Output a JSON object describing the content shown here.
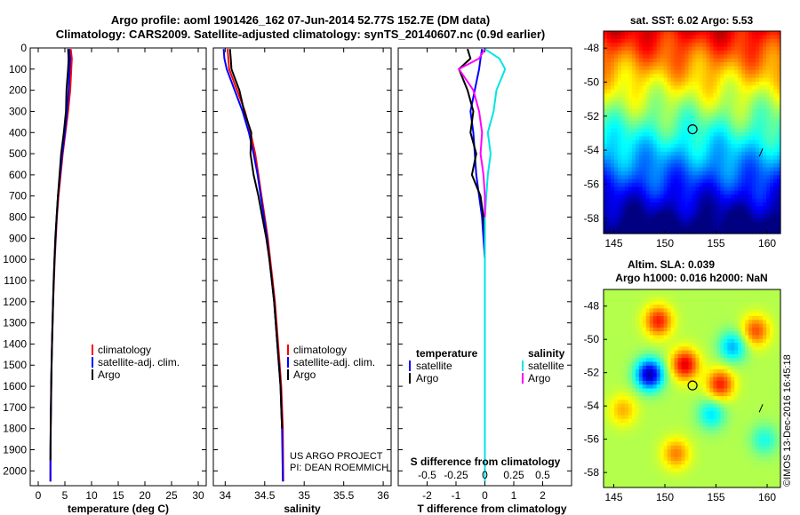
{
  "title_line1": "Argo profile: aoml 1901426_162 07-Jun-2014 52.77S 152.7E (DM data)",
  "title_line2": "Climatology: CARS2009. Satellite-adjusted climatology: synTS_20140607.nc (0.9d earlier)",
  "colors": {
    "climatology": "#ff0000",
    "satellite": "#0000ff",
    "argo": "#000000",
    "sat_salinity": "#00e5e5",
    "argo_salinity": "#ff00ff"
  },
  "chart_data": [
    {
      "type": "line",
      "name": "temperature",
      "xlabel": "temperature (deg C)",
      "ylabel": "",
      "xlim": [
        -1.5,
        31.5
      ],
      "ylim": [
        2070,
        0
      ],
      "xticks": [
        "0",
        "5",
        "10",
        "15",
        "20",
        "25",
        "30"
      ],
      "yticks": [
        "0",
        "100",
        "200",
        "300",
        "400",
        "500",
        "600",
        "700",
        "800",
        "900",
        "1000",
        "1100",
        "1200",
        "1300",
        "1400",
        "1500",
        "1600",
        "1700",
        "1800",
        "1900",
        "2000"
      ],
      "legend": [
        "climatology",
        "satellite-adj. clim.",
        "Argo"
      ],
      "series": [
        {
          "name": "climatology",
          "x": [
            6.1,
            6.3,
            6.2,
            6.0,
            5.6,
            5.1,
            4.6,
            4.2,
            3.8,
            3.5,
            3.3,
            3.1,
            2.95,
            2.8,
            2.7,
            2.6,
            2.5,
            2.45,
            2.4,
            2.35,
            2.3,
            2.3
          ],
          "y": [
            5,
            50,
            100,
            200,
            300,
            400,
            500,
            600,
            700,
            800,
            900,
            1000,
            1100,
            1200,
            1300,
            1400,
            1500,
            1600,
            1700,
            1800,
            1900,
            2050
          ]
        },
        {
          "name": "satellite-adj. clim.",
          "x": [
            5.8,
            6.0,
            5.9,
            5.7,
            5.4,
            5.0,
            4.5,
            4.1,
            3.7,
            3.45,
            3.25,
            3.05,
            2.9,
            2.78,
            2.68,
            2.58,
            2.5,
            2.44,
            2.38,
            2.33,
            2.3,
            2.28
          ],
          "y": [
            5,
            50,
            100,
            200,
            300,
            400,
            500,
            600,
            700,
            800,
            900,
            1000,
            1100,
            1200,
            1300,
            1400,
            1500,
            1600,
            1700,
            1800,
            1900,
            2050
          ]
        },
        {
          "name": "Argo",
          "x": [
            5.6,
            5.7,
            5.6,
            5.3,
            5.2,
            4.8,
            4.3,
            4.0,
            3.7,
            3.45,
            3.2,
            3.05,
            2.9,
            2.78,
            2.68,
            2.58,
            2.5,
            2.44,
            2.38,
            2.33,
            2.3
          ],
          "y": [
            5,
            50,
            100,
            200,
            300,
            400,
            500,
            600,
            700,
            800,
            900,
            1000,
            1100,
            1200,
            1300,
            1400,
            1500,
            1600,
            1700,
            1800,
            1950
          ]
        }
      ]
    },
    {
      "type": "line",
      "name": "salinity",
      "xlabel": "salinity",
      "xlim": [
        33.85,
        36.1
      ],
      "ylim": [
        2070,
        0
      ],
      "xticks": [
        "34",
        "34.5",
        "35",
        "35.5",
        "36"
      ],
      "legend": [
        "climatology",
        "satellite-adj. clim.",
        "Argo"
      ],
      "annotations": [
        "US ARGO PROJECT",
        "PI: DEAN ROEMMICH"
      ],
      "series": [
        {
          "name": "climatology",
          "x": [
            34.03,
            34.04,
            34.05,
            34.15,
            34.25,
            34.32,
            34.38,
            34.42,
            34.46,
            34.5,
            34.54,
            34.57,
            34.6,
            34.63,
            34.65,
            34.67,
            34.69,
            34.71,
            34.72,
            34.73,
            34.735
          ],
          "y": [
            5,
            50,
            100,
            200,
            300,
            400,
            500,
            600,
            700,
            800,
            900,
            1000,
            1100,
            1200,
            1300,
            1400,
            1500,
            1600,
            1700,
            1800,
            2050
          ]
        },
        {
          "name": "satellite-adj. clim.",
          "x": [
            33.98,
            33.99,
            34.02,
            34.12,
            34.22,
            34.3,
            34.36,
            34.41,
            34.45,
            34.49,
            34.53,
            34.56,
            34.59,
            34.62,
            34.64,
            34.66,
            34.68,
            34.7,
            34.71,
            34.72,
            34.73
          ],
          "y": [
            5,
            50,
            100,
            200,
            300,
            400,
            500,
            600,
            700,
            800,
            900,
            1000,
            1100,
            1200,
            1300,
            1400,
            1500,
            1600,
            1700,
            1800,
            2050
          ]
        },
        {
          "name": "Argo",
          "x": [
            34.06,
            34.07,
            34.08,
            34.18,
            34.24,
            34.33,
            34.32,
            34.36,
            34.42,
            34.47,
            34.52,
            34.56,
            34.59,
            34.62,
            34.64,
            34.66,
            34.68,
            34.7,
            34.71,
            34.72
          ],
          "y": [
            5,
            50,
            100,
            200,
            300,
            400,
            500,
            600,
            700,
            800,
            900,
            1000,
            1100,
            1200,
            1300,
            1400,
            1500,
            1600,
            1700,
            1800
          ]
        }
      ]
    },
    {
      "type": "line",
      "name": "difference",
      "xlabel": "T difference from climatology",
      "xlabel_top": "S difference from climatology",
      "xlim": [
        -3,
        3
      ],
      "ylim": [
        2070,
        0
      ],
      "xticks": [
        "-2",
        "-1",
        "0",
        "1",
        "2"
      ],
      "xticks_top": [
        "-0.5",
        "-0.25",
        "0",
        "0.25",
        "0.5"
      ],
      "legend": [
        "temperature",
        "satellite",
        "Argo",
        "salinity",
        "satellite",
        "Argo"
      ],
      "series": [
        {
          "name": "satellite",
          "x": [
            -0.1,
            -0.15,
            -0.2,
            -0.35,
            -0.5,
            -0.4,
            -0.3,
            -0.2,
            -0.1,
            -0.05,
            0.0,
            0.0,
            0.0,
            0.0,
            0.0
          ],
          "y": [
            5,
            50,
            100,
            200,
            300,
            400,
            600,
            700,
            800,
            900,
            1000,
            1100,
            1200,
            1500,
            2050
          ]
        },
        {
          "name": "Argo",
          "x": [
            -0.6,
            -0.5,
            -0.9,
            -0.6,
            -0.4,
            -0.5,
            -0.3,
            -0.45,
            -0.15,
            -0.05,
            0.0
          ],
          "y": [
            5,
            50,
            100,
            200,
            300,
            400,
            500,
            600,
            700,
            800,
            900
          ]
        },
        {
          "name": "satellite",
          "x": [
            0.0,
            0.5,
            0.7,
            0.4,
            0.3,
            0.1,
            0.2,
            0.1,
            0.05,
            0.0,
            0.0,
            0.0,
            0.0
          ],
          "y": [
            5,
            50,
            100,
            200,
            300,
            400,
            500,
            600,
            700,
            800,
            1000,
            1500,
            2050
          ]
        },
        {
          "name": "Argo",
          "x": [
            0.0,
            -0.2,
            -0.9,
            -0.4,
            -0.2,
            -0.1,
            -0.15,
            -0.05,
            0.0,
            0.0
          ],
          "y": [
            5,
            50,
            100,
            200,
            300,
            400,
            500,
            600,
            700,
            800
          ]
        }
      ]
    }
  ],
  "map1": {
    "title": "sat. SST: 6.02 Argo: 5.53",
    "xticks": [
      "145",
      "150",
      "155",
      "160"
    ],
    "yticks": [
      "-48",
      "-50",
      "-52",
      "-54",
      "-56",
      "-58"
    ]
  },
  "map2": {
    "title_line1": "Altim. SLA: 0.039",
    "title_line2": "Argo h1000: 0.016 h2000: NaN",
    "xticks": [
      "145",
      "150",
      "155",
      "160"
    ],
    "yticks": [
      "-48",
      "-50",
      "-52",
      "-54",
      "-56",
      "-58"
    ]
  },
  "credit": "©IMOS 13-Dec-2016 16:45:18"
}
